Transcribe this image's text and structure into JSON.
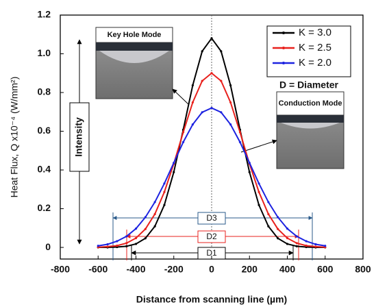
{
  "chart_data": {
    "type": "line",
    "x_label": "Distance from scanning line (µm)",
    "y_label": "Heat Flux, Q x10⁻⁴ (W/mm²)",
    "x": [
      -600,
      -550,
      -500,
      -450,
      -400,
      -350,
      -300,
      -250,
      -200,
      -150,
      -100,
      -50,
      0,
      50,
      100,
      150,
      200,
      250,
      300,
      350,
      400,
      450,
      500,
      550,
      600
    ],
    "series": [
      {
        "name": "K = 3.0",
        "color": "#000000",
        "values": [
          0,
          0,
          0.002,
          0.006,
          0.018,
          0.047,
          0.109,
          0.219,
          0.389,
          0.608,
          0.837,
          1.013,
          1.08,
          1.013,
          0.837,
          0.608,
          0.389,
          0.219,
          0.109,
          0.047,
          0.018,
          0.006,
          0.002,
          0,
          0
        ]
      },
      {
        "name": "K = 2.5",
        "color": "#e8201c",
        "values": [
          0.001,
          0.004,
          0.009,
          0.022,
          0.048,
          0.095,
          0.172,
          0.286,
          0.432,
          0.595,
          0.749,
          0.86,
          0.9,
          0.86,
          0.749,
          0.595,
          0.432,
          0.286,
          0.172,
          0.095,
          0.048,
          0.022,
          0.009,
          0.004,
          0.001
        ]
      },
      {
        "name": "K = 2.0",
        "color": "#1c22e0",
        "values": [
          0.008,
          0.016,
          0.032,
          0.057,
          0.097,
          0.156,
          0.234,
          0.33,
          0.437,
          0.544,
          0.635,
          0.698,
          0.72,
          0.698,
          0.635,
          0.544,
          0.437,
          0.33,
          0.234,
          0.156,
          0.097,
          0.057,
          0.032,
          0.016,
          0.008
        ]
      }
    ],
    "xlim": [
      -800,
      800
    ],
    "xticks": [
      -800,
      -600,
      -400,
      -200,
      0,
      200,
      400,
      600,
      800
    ],
    "ylim": [
      -0.06,
      1.2
    ],
    "yticks": [
      0,
      0.2,
      0.4,
      0.6,
      0.8,
      {
        "value": 1,
        "label": "1.0"
      },
      {
        "value": 1.2,
        "label": "1.2"
      }
    ],
    "legend": "upper right",
    "annotations": {
      "diameter_note": "D = Diameter",
      "intensity": "Intensity",
      "keyhole": "Key Hole Mode",
      "conduction": "Conduction Mode",
      "d1": "D1",
      "d2": "D2",
      "d3": "D3"
    }
  }
}
